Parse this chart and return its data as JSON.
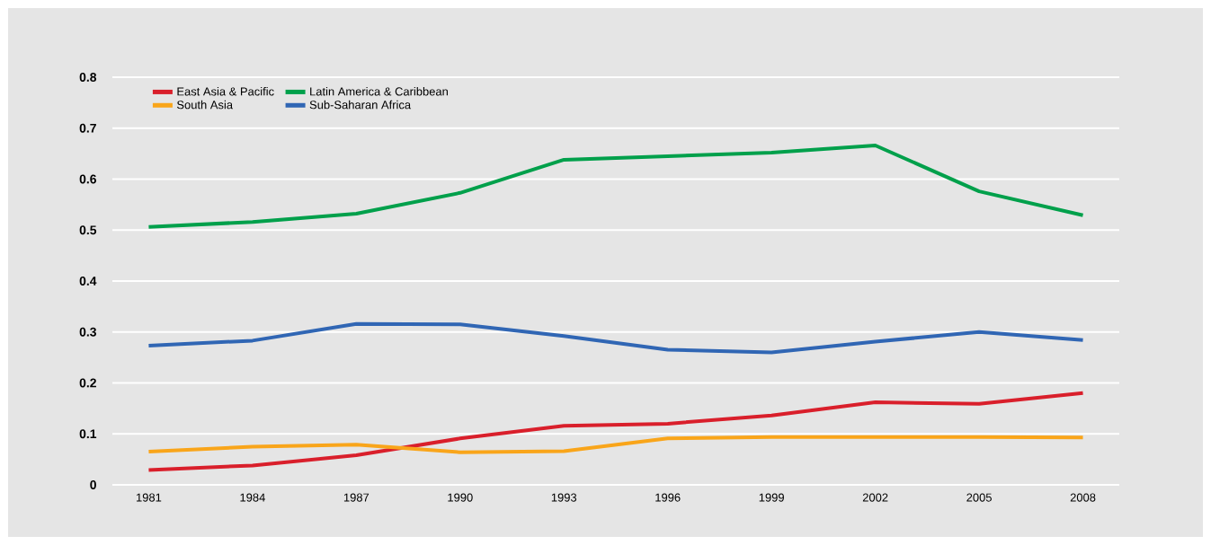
{
  "chart_data": {
    "type": "line",
    "categories": [
      "1981",
      "1984",
      "1987",
      "1990",
      "1993",
      "1996",
      "1999",
      "2002",
      "2005",
      "2008"
    ],
    "series": [
      {
        "name": "East Asia & Pacific",
        "color": "#d91f2b",
        "values": [
          0.029,
          0.038,
          0.058,
          0.091,
          0.116,
          0.12,
          0.136,
          0.162,
          0.159,
          0.18
        ]
      },
      {
        "name": "Latin America & Caribbean",
        "color": "#00a04b",
        "values": [
          0.506,
          0.516,
          0.532,
          0.573,
          0.638,
          0.645,
          0.652,
          0.666,
          0.576,
          0.529
        ]
      },
      {
        "name": "South Asia",
        "color": "#f9a51a",
        "values": [
          0.065,
          0.075,
          0.079,
          0.064,
          0.066,
          0.091,
          0.094,
          0.094,
          0.094,
          0.093
        ]
      },
      {
        "name": "Sub-Saharan Africa",
        "color": "#3066b4",
        "values": [
          0.273,
          0.283,
          0.316,
          0.315,
          0.292,
          0.265,
          0.26,
          0.281,
          0.3,
          0.284
        ]
      }
    ],
    "ylim": [
      0,
      0.8
    ],
    "yticks": [
      0,
      0.1,
      0.2,
      0.3,
      0.4,
      0.5,
      0.6,
      0.7,
      0.8
    ],
    "grid": "y",
    "legend": "top left",
    "marker": "none",
    "line_style": "solid"
  }
}
